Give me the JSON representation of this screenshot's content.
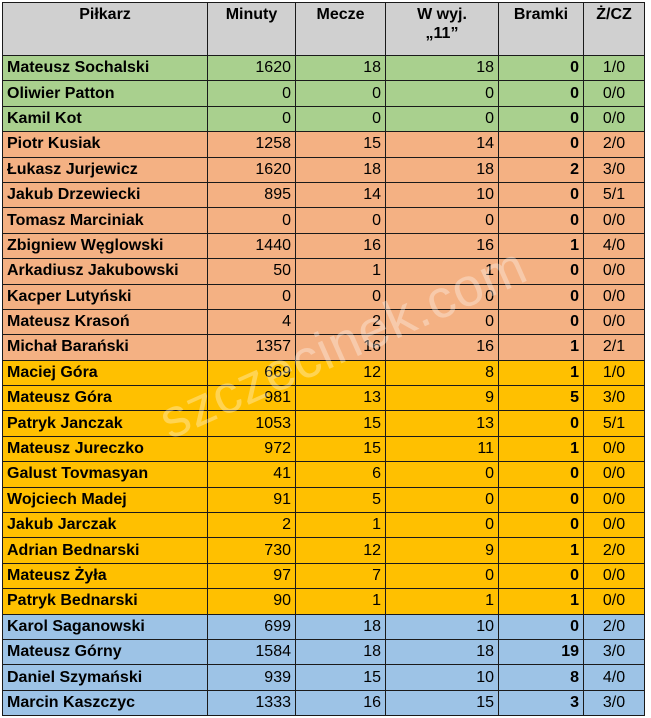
{
  "headers": {
    "player": "Piłkarz",
    "minutes": "Minuty",
    "matches": "Mecze",
    "starts_line1": "W wyj.",
    "starts_line2": "„11”",
    "goals": "Bramki",
    "cards": "Ż/CZ"
  },
  "watermark": "szczecinek.com",
  "group_colors": {
    "green": "#a9d08e",
    "orange": "#f4b183",
    "yellow": "#ffc000",
    "blue": "#9dc3e6",
    "header": "#d0d0d0"
  },
  "rows": [
    {
      "name": "Mateusz Sochalski",
      "minutes": "1620",
      "matches": "18",
      "starts": "18",
      "goals": "0",
      "cards": "1/0",
      "group": "green"
    },
    {
      "name": "Oliwier Patton",
      "minutes": "0",
      "matches": "0",
      "starts": "0",
      "goals": "0",
      "cards": "0/0",
      "group": "green"
    },
    {
      "name": "Kamil Kot",
      "minutes": "0",
      "matches": "0",
      "starts": "0",
      "goals": "0",
      "cards": "0/0",
      "group": "green"
    },
    {
      "name": "Piotr Kusiak",
      "minutes": "1258",
      "matches": "15",
      "starts": "14",
      "goals": "0",
      "cards": "2/0",
      "group": "orange"
    },
    {
      "name": "Łukasz Jurjewicz",
      "minutes": "1620",
      "matches": "18",
      "starts": "18",
      "goals": "2",
      "cards": "3/0",
      "group": "orange"
    },
    {
      "name": "Jakub Drzewiecki",
      "minutes": "895",
      "matches": "14",
      "starts": "10",
      "goals": "0",
      "cards": "5/1",
      "group": "orange"
    },
    {
      "name": "Tomasz Marciniak",
      "minutes": "0",
      "matches": "0",
      "starts": "0",
      "goals": "0",
      "cards": "0/0",
      "group": "orange"
    },
    {
      "name": "Zbigniew Węglowski",
      "minutes": "1440",
      "matches": "16",
      "starts": "16",
      "goals": "1",
      "cards": "4/0",
      "group": "orange"
    },
    {
      "name": "Arkadiusz Jakubowski",
      "minutes": "50",
      "matches": "1",
      "starts": "1",
      "goals": "0",
      "cards": "0/0",
      "group": "orange"
    },
    {
      "name": "Kacper Lutyński",
      "minutes": "0",
      "matches": "0",
      "starts": "0",
      "goals": "0",
      "cards": "0/0",
      "group": "orange"
    },
    {
      "name": "Mateusz Krasoń",
      "minutes": "4",
      "matches": "2",
      "starts": "0",
      "goals": "0",
      "cards": "0/0",
      "group": "orange"
    },
    {
      "name": "Michał Barański",
      "minutes": "1357",
      "matches": "16",
      "starts": "16",
      "goals": "1",
      "cards": "2/1",
      "group": "orange"
    },
    {
      "name": "Maciej Góra",
      "minutes": "669",
      "matches": "12",
      "starts": "8",
      "goals": "1",
      "cards": "1/0",
      "group": "yellow"
    },
    {
      "name": "Mateusz Góra",
      "minutes": "981",
      "matches": "13",
      "starts": "9",
      "goals": "5",
      "cards": "3/0",
      "group": "yellow"
    },
    {
      "name": "Patryk Janczak",
      "minutes": "1053",
      "matches": "15",
      "starts": "13",
      "goals": "0",
      "cards": "5/1",
      "group": "yellow"
    },
    {
      "name": "Mateusz Jureczko",
      "minutes": "972",
      "matches": "15",
      "starts": "11",
      "goals": "1",
      "cards": "0/0",
      "group": "yellow"
    },
    {
      "name": "Galust Tovmasyan",
      "minutes": "41",
      "matches": "6",
      "starts": "0",
      "goals": "0",
      "cards": "0/0",
      "group": "yellow"
    },
    {
      "name": "Wojciech Madej",
      "minutes": "91",
      "matches": "5",
      "starts": "0",
      "goals": "0",
      "cards": "0/0",
      "group": "yellow"
    },
    {
      "name": "Jakub Jarczak",
      "minutes": "2",
      "matches": "1",
      "starts": "0",
      "goals": "0",
      "cards": "0/0",
      "group": "yellow"
    },
    {
      "name": "Adrian Bednarski",
      "minutes": "730",
      "matches": "12",
      "starts": "9",
      "goals": "1",
      "cards": "2/0",
      "group": "yellow"
    },
    {
      "name": "Mateusz Żyła",
      "minutes": "97",
      "matches": "7",
      "starts": "0",
      "goals": "0",
      "cards": "0/0",
      "group": "yellow"
    },
    {
      "name": "Patryk Bednarski",
      "minutes": "90",
      "matches": "1",
      "starts": "1",
      "goals": "1",
      "cards": "0/0",
      "group": "yellow"
    },
    {
      "name": "Karol Saganowski",
      "minutes": "699",
      "matches": "18",
      "starts": "10",
      "goals": "0",
      "cards": "2/0",
      "group": "blue"
    },
    {
      "name": "Mateusz Górny",
      "minutes": "1584",
      "matches": "18",
      "starts": "18",
      "goals": "19",
      "cards": "3/0",
      "group": "blue"
    },
    {
      "name": "Daniel Szymański",
      "minutes": "939",
      "matches": "15",
      "starts": "10",
      "goals": "8",
      "cards": "4/0",
      "group": "blue"
    },
    {
      "name": "Marcin Kaszczyc",
      "minutes": "1333",
      "matches": "16",
      "starts": "15",
      "goals": "3",
      "cards": "3/0",
      "group": "blue"
    }
  ]
}
